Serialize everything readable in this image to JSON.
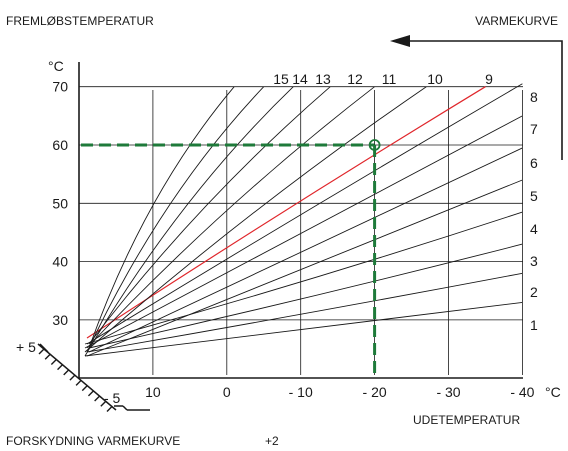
{
  "header": {
    "left": "FREMLØBSTEMPERATUR",
    "right": "VARMEKURVE"
  },
  "footer": {
    "left": "FORSKYDNING VARMEKURVE",
    "value": "+2"
  },
  "axes": {
    "y_unit": "°C",
    "x_unit": "°C",
    "x_title": "UDETEMPERATUR"
  },
  "shift_scale": {
    "plus_label": "+ 5",
    "minus_label": "- 5"
  },
  "colors": {
    "curve": "#1a1a1a",
    "highlight": "#e0262b",
    "guide": "#1e7a3a"
  },
  "chart_data": {
    "type": "line",
    "title": "",
    "xlabel": "UDETEMPERATUR",
    "ylabel": "FREMLØBSTEMPERATUR",
    "x_unit": "°C",
    "y_unit": "°C",
    "x_reversed": true,
    "xlim": [
      20,
      -40
    ],
    "ylim": [
      20,
      70
    ],
    "x_ticks": [
      {
        "value": 10,
        "label": "10"
      },
      {
        "value": 0,
        "label": "0"
      },
      {
        "value": -10,
        "label": "- 10"
      },
      {
        "value": -20,
        "label": "- 20"
      },
      {
        "value": -30,
        "label": "- 30"
      },
      {
        "value": -40,
        "label": "- 40"
      }
    ],
    "y_ticks": [
      {
        "value": 30,
        "label": "30"
      },
      {
        "value": 40,
        "label": "40"
      },
      {
        "value": 50,
        "label": "50"
      },
      {
        "value": 60,
        "label": "60"
      },
      {
        "value": 70,
        "label": "70"
      }
    ],
    "grid": true,
    "origin": [
      20,
      20
    ],
    "series": [
      {
        "name": "1",
        "end": [
          -40,
          33
        ]
      },
      {
        "name": "2",
        "end": [
          -40,
          38
        ]
      },
      {
        "name": "3",
        "end": [
          -40,
          43
        ]
      },
      {
        "name": "4",
        "end": [
          -40,
          48.5
        ]
      },
      {
        "name": "5",
        "end": [
          -40,
          54
        ]
      },
      {
        "name": "6",
        "end": [
          -40,
          59.5
        ]
      },
      {
        "name": "7",
        "end": [
          -40,
          65
        ]
      },
      {
        "name": "8",
        "end": [
          -40,
          70.5
        ]
      },
      {
        "name": "9",
        "end": [
          -35,
          70
        ],
        "highlight": true
      },
      {
        "name": "10",
        "end": [
          -27,
          70
        ]
      },
      {
        "name": "11",
        "end": [
          -20,
          70
        ]
      },
      {
        "name": "12",
        "end": [
          -14,
          70
        ]
      },
      {
        "name": "13",
        "end": [
          -9,
          70
        ]
      },
      {
        "name": "14",
        "end": [
          -5,
          70
        ]
      },
      {
        "name": "15",
        "end": [
          -1,
          70
        ]
      }
    ],
    "annotation": {
      "x": -20,
      "y": 60,
      "label": ""
    },
    "arrow": {
      "direction": "left",
      "label": "VARMEKURVE"
    }
  }
}
